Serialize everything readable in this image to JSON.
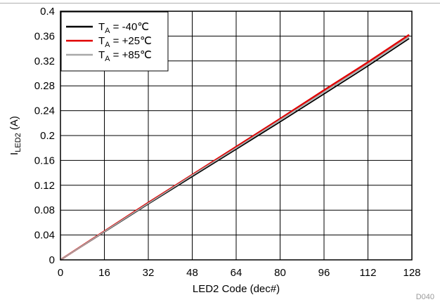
{
  "chart_data": {
    "type": "line",
    "xlabel": "LED2 Code (dec#)",
    "ylabel": "I",
    "ylabel_sub": "LED2",
    "ylabel_unit": " (A)",
    "xlim": [
      0,
      128
    ],
    "ylim": [
      0,
      0.4
    ],
    "xticks": [
      0,
      16,
      32,
      48,
      64,
      80,
      96,
      112,
      128
    ],
    "yticks": [
      0,
      0.04,
      0.08,
      0.12,
      0.16,
      0.2,
      0.24,
      0.28,
      0.32,
      0.36,
      0.4
    ],
    "ytick_labels": [
      "0",
      "0.04",
      "0.08",
      "0.12",
      "0.16",
      "0.2",
      "0.24",
      "0.28",
      "0.32",
      "0.36",
      "0.4"
    ],
    "grid": true,
    "legend_position": "top-left",
    "code_tag": "D040",
    "series": [
      {
        "legend_prefix": "T",
        "legend_sub": "A",
        "legend_value": " = -40℃",
        "color": "#000000",
        "x": [
          0,
          16,
          32,
          48,
          64,
          80,
          96,
          112,
          127
        ],
        "y": [
          0.0,
          0.045,
          0.09,
          0.134,
          0.178,
          0.222,
          0.267,
          0.312,
          0.356
        ]
      },
      {
        "legend_prefix": "T",
        "legend_sub": "A",
        "legend_value": " = +25℃",
        "color": "#e00000",
        "x": [
          0,
          16,
          32,
          48,
          64,
          80,
          96,
          112,
          127
        ],
        "y": [
          0.0,
          0.046,
          0.092,
          0.137,
          0.182,
          0.227,
          0.273,
          0.318,
          0.362
        ]
      },
      {
        "legend_prefix": "T",
        "legend_sub": "A",
        "legend_value": " = +85℃",
        "color": "#a8a8a8",
        "x": [
          0,
          16,
          32,
          48,
          64,
          80,
          96,
          112,
          127
        ],
        "y": [
          0.0,
          0.0455,
          0.091,
          0.136,
          0.18,
          0.225,
          0.27,
          0.315,
          0.359
        ]
      }
    ]
  }
}
